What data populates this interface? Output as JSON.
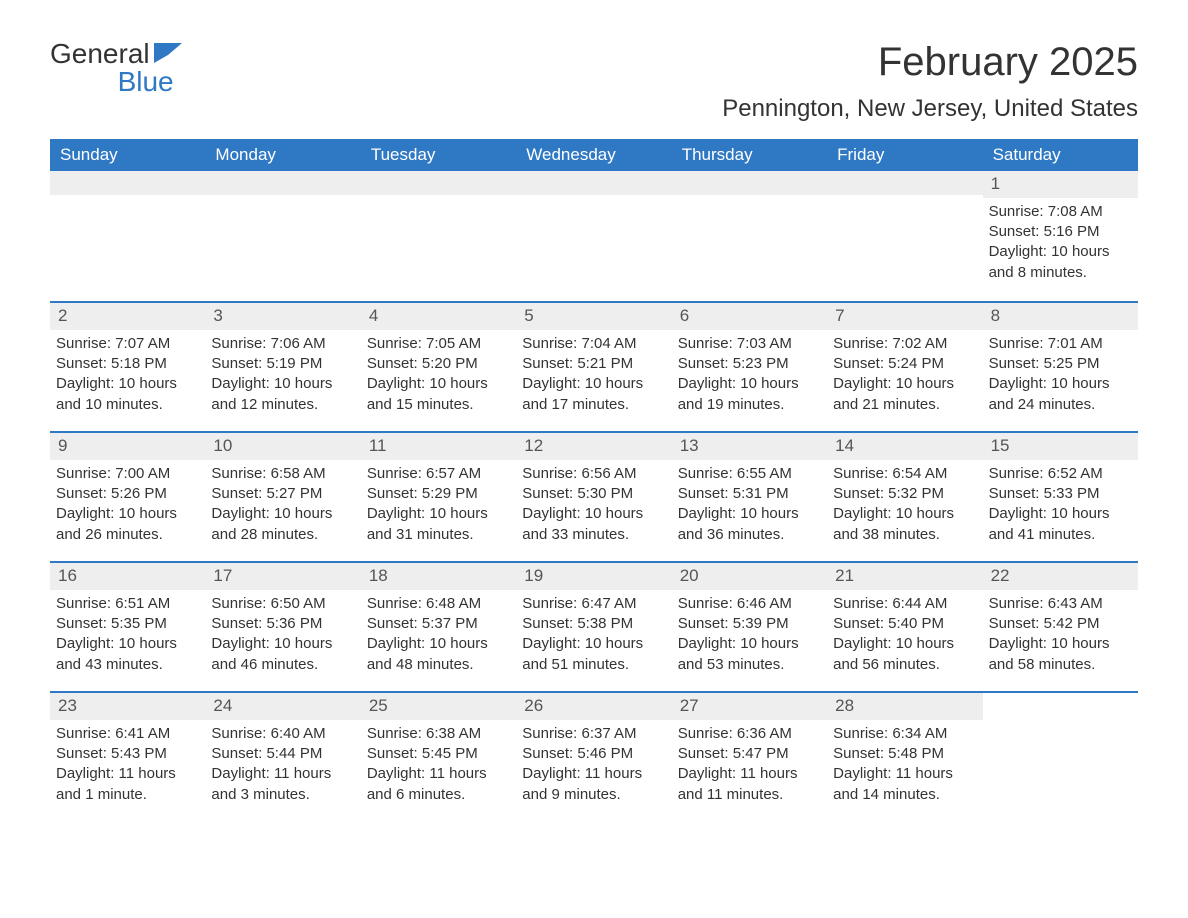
{
  "logo": {
    "word1": "General",
    "word2": "Blue"
  },
  "title": {
    "month": "February 2025",
    "location": "Pennington, New Jersey, United States"
  },
  "colors": {
    "header_bg": "#2f78c4",
    "header_text": "#ffffff",
    "daybar_bg": "#eeeeee",
    "text": "#333333",
    "accent": "#2f78c4"
  },
  "calendar": {
    "weekdays": [
      "Sunday",
      "Monday",
      "Tuesday",
      "Wednesday",
      "Thursday",
      "Friday",
      "Saturday"
    ],
    "weeks": [
      [
        null,
        null,
        null,
        null,
        null,
        null,
        {
          "day": "1",
          "sunrise": "Sunrise: 7:08 AM",
          "sunset": "Sunset: 5:16 PM",
          "daylight": "Daylight: 10 hours and 8 minutes."
        }
      ],
      [
        {
          "day": "2",
          "sunrise": "Sunrise: 7:07 AM",
          "sunset": "Sunset: 5:18 PM",
          "daylight": "Daylight: 10 hours and 10 minutes."
        },
        {
          "day": "3",
          "sunrise": "Sunrise: 7:06 AM",
          "sunset": "Sunset: 5:19 PM",
          "daylight": "Daylight: 10 hours and 12 minutes."
        },
        {
          "day": "4",
          "sunrise": "Sunrise: 7:05 AM",
          "sunset": "Sunset: 5:20 PM",
          "daylight": "Daylight: 10 hours and 15 minutes."
        },
        {
          "day": "5",
          "sunrise": "Sunrise: 7:04 AM",
          "sunset": "Sunset: 5:21 PM",
          "daylight": "Daylight: 10 hours and 17 minutes."
        },
        {
          "day": "6",
          "sunrise": "Sunrise: 7:03 AM",
          "sunset": "Sunset: 5:23 PM",
          "daylight": "Daylight: 10 hours and 19 minutes."
        },
        {
          "day": "7",
          "sunrise": "Sunrise: 7:02 AM",
          "sunset": "Sunset: 5:24 PM",
          "daylight": "Daylight: 10 hours and 21 minutes."
        },
        {
          "day": "8",
          "sunrise": "Sunrise: 7:01 AM",
          "sunset": "Sunset: 5:25 PM",
          "daylight": "Daylight: 10 hours and 24 minutes."
        }
      ],
      [
        {
          "day": "9",
          "sunrise": "Sunrise: 7:00 AM",
          "sunset": "Sunset: 5:26 PM",
          "daylight": "Daylight: 10 hours and 26 minutes."
        },
        {
          "day": "10",
          "sunrise": "Sunrise: 6:58 AM",
          "sunset": "Sunset: 5:27 PM",
          "daylight": "Daylight: 10 hours and 28 minutes."
        },
        {
          "day": "11",
          "sunrise": "Sunrise: 6:57 AM",
          "sunset": "Sunset: 5:29 PM",
          "daylight": "Daylight: 10 hours and 31 minutes."
        },
        {
          "day": "12",
          "sunrise": "Sunrise: 6:56 AM",
          "sunset": "Sunset: 5:30 PM",
          "daylight": "Daylight: 10 hours and 33 minutes."
        },
        {
          "day": "13",
          "sunrise": "Sunrise: 6:55 AM",
          "sunset": "Sunset: 5:31 PM",
          "daylight": "Daylight: 10 hours and 36 minutes."
        },
        {
          "day": "14",
          "sunrise": "Sunrise: 6:54 AM",
          "sunset": "Sunset: 5:32 PM",
          "daylight": "Daylight: 10 hours and 38 minutes."
        },
        {
          "day": "15",
          "sunrise": "Sunrise: 6:52 AM",
          "sunset": "Sunset: 5:33 PM",
          "daylight": "Daylight: 10 hours and 41 minutes."
        }
      ],
      [
        {
          "day": "16",
          "sunrise": "Sunrise: 6:51 AM",
          "sunset": "Sunset: 5:35 PM",
          "daylight": "Daylight: 10 hours and 43 minutes."
        },
        {
          "day": "17",
          "sunrise": "Sunrise: 6:50 AM",
          "sunset": "Sunset: 5:36 PM",
          "daylight": "Daylight: 10 hours and 46 minutes."
        },
        {
          "day": "18",
          "sunrise": "Sunrise: 6:48 AM",
          "sunset": "Sunset: 5:37 PM",
          "daylight": "Daylight: 10 hours and 48 minutes."
        },
        {
          "day": "19",
          "sunrise": "Sunrise: 6:47 AM",
          "sunset": "Sunset: 5:38 PM",
          "daylight": "Daylight: 10 hours and 51 minutes."
        },
        {
          "day": "20",
          "sunrise": "Sunrise: 6:46 AM",
          "sunset": "Sunset: 5:39 PM",
          "daylight": "Daylight: 10 hours and 53 minutes."
        },
        {
          "day": "21",
          "sunrise": "Sunrise: 6:44 AM",
          "sunset": "Sunset: 5:40 PM",
          "daylight": "Daylight: 10 hours and 56 minutes."
        },
        {
          "day": "22",
          "sunrise": "Sunrise: 6:43 AM",
          "sunset": "Sunset: 5:42 PM",
          "daylight": "Daylight: 10 hours and 58 minutes."
        }
      ],
      [
        {
          "day": "23",
          "sunrise": "Sunrise: 6:41 AM",
          "sunset": "Sunset: 5:43 PM",
          "daylight": "Daylight: 11 hours and 1 minute."
        },
        {
          "day": "24",
          "sunrise": "Sunrise: 6:40 AM",
          "sunset": "Sunset: 5:44 PM",
          "daylight": "Daylight: 11 hours and 3 minutes."
        },
        {
          "day": "25",
          "sunrise": "Sunrise: 6:38 AM",
          "sunset": "Sunset: 5:45 PM",
          "daylight": "Daylight: 11 hours and 6 minutes."
        },
        {
          "day": "26",
          "sunrise": "Sunrise: 6:37 AM",
          "sunset": "Sunset: 5:46 PM",
          "daylight": "Daylight: 11 hours and 9 minutes."
        },
        {
          "day": "27",
          "sunrise": "Sunrise: 6:36 AM",
          "sunset": "Sunset: 5:47 PM",
          "daylight": "Daylight: 11 hours and 11 minutes."
        },
        {
          "day": "28",
          "sunrise": "Sunrise: 6:34 AM",
          "sunset": "Sunset: 5:48 PM",
          "daylight": "Daylight: 11 hours and 14 minutes."
        },
        null
      ]
    ]
  }
}
